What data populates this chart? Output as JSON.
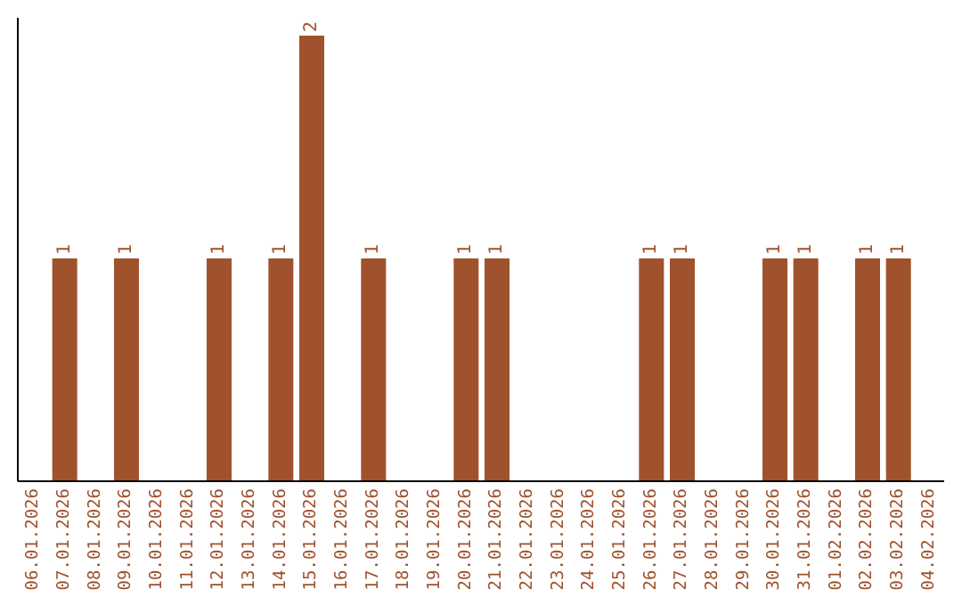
{
  "chart_data": {
    "type": "bar",
    "categories": [
      "06.01.2026",
      "07.01.2026",
      "08.01.2026",
      "09.01.2026",
      "10.01.2026",
      "11.01.2026",
      "12.01.2026",
      "13.01.2026",
      "14.01.2026",
      "15.01.2026",
      "16.01.2026",
      "17.01.2026",
      "18.01.2026",
      "19.01.2026",
      "20.01.2026",
      "21.01.2026",
      "22.01.2026",
      "23.01.2026",
      "24.01.2026",
      "25.01.2026",
      "26.01.2026",
      "27.01.2026",
      "28.01.2026",
      "29.01.2026",
      "30.01.2026",
      "31.01.2026",
      "01.02.2026",
      "02.02.2026",
      "03.02.2026",
      "04.02.2026"
    ],
    "values": [
      0,
      1,
      0,
      1,
      0,
      0,
      1,
      0,
      1,
      2,
      0,
      1,
      0,
      0,
      1,
      1,
      0,
      0,
      0,
      0,
      1,
      1,
      0,
      0,
      1,
      1,
      0,
      1,
      1,
      0
    ],
    "value_labels": [
      null,
      "1",
      null,
      "1",
      null,
      null,
      "1",
      null,
      "1",
      "2",
      null,
      "1",
      null,
      null,
      "1",
      "1",
      null,
      null,
      null,
      null,
      "1",
      "1",
      null,
      null,
      "1",
      "1",
      null,
      "1",
      "1",
      null
    ],
    "color": "#a0522d",
    "ylim": [
      0,
      2.08
    ],
    "tick_labels": "x",
    "grid": false,
    "legend": false
  }
}
